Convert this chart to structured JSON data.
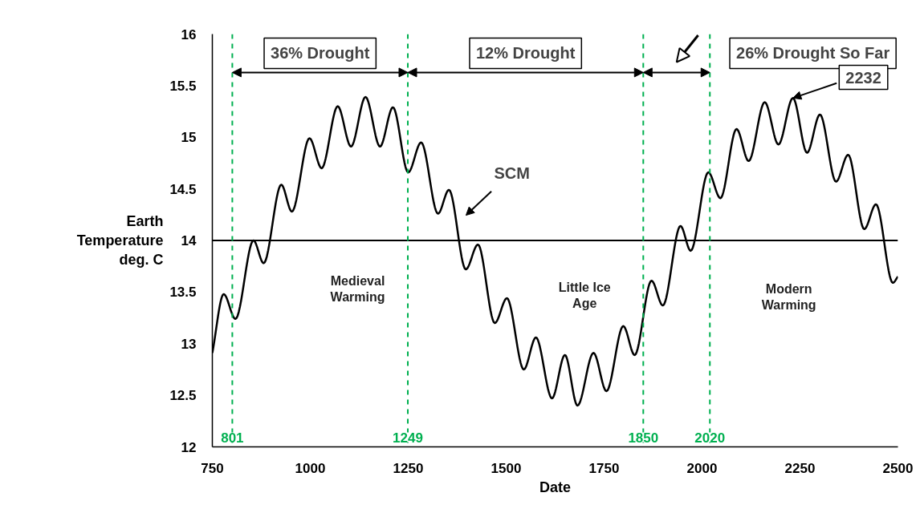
{
  "chart_data": {
    "type": "line",
    "xlabel": "Date",
    "ylabel": "Earth\nTemperature\ndeg. C",
    "xlim": [
      750,
      2500
    ],
    "ylim": [
      12,
      16
    ],
    "xticks": [
      750,
      1000,
      1250,
      1500,
      1750,
      2000,
      2250,
      2500
    ],
    "yticks": [
      12,
      12.5,
      13,
      13.5,
      14,
      14.5,
      15,
      15.5,
      16
    ],
    "grid": false,
    "marker": "none",
    "line_style": "solid",
    "series": [
      {
        "color": "#000000",
        "x": [
          750,
          779,
          809,
          855,
          881,
          926,
          953,
          998,
          1029,
          1070,
          1104,
          1141,
          1178,
          1211,
          1250,
          1283,
          1326,
          1354,
          1397,
          1428,
          1471,
          1502,
          1545,
          1576,
          1617,
          1650,
          1682,
          1723,
          1756,
          1799,
          1828,
          1871,
          1900,
          1945,
          1971,
          2016,
          2047,
          2088,
          2119,
          2160,
          2195,
          2232,
          2268,
          2301,
          2342,
          2373,
          2414,
          2444,
          2487,
          2500
        ],
        "values": [
          12.91,
          13.48,
          13.24,
          14.0,
          13.78,
          14.54,
          14.28,
          14.99,
          14.7,
          15.3,
          14.91,
          15.39,
          14.91,
          15.29,
          14.66,
          14.95,
          14.26,
          14.49,
          13.72,
          13.96,
          13.2,
          13.44,
          12.75,
          13.06,
          12.47,
          12.89,
          12.4,
          12.91,
          12.54,
          13.17,
          12.89,
          13.61,
          13.37,
          14.14,
          13.9,
          14.66,
          14.41,
          15.08,
          14.77,
          15.34,
          14.93,
          15.38,
          14.85,
          15.22,
          14.57,
          14.83,
          14.11,
          14.35,
          13.59,
          13.65
        ]
      }
    ],
    "ref_lines": [
      {
        "axis": "y",
        "value": 14,
        "color": "#000000",
        "line_style": "solid"
      },
      {
        "axis": "x",
        "value": 801,
        "label": "801",
        "color": "#00b050",
        "line_style": "dashed"
      },
      {
        "axis": "x",
        "value": 1249,
        "label": "1249",
        "color": "#00b050",
        "line_style": "dashed"
      },
      {
        "axis": "x",
        "value": 1850,
        "label": "1850",
        "color": "#00b050",
        "line_style": "dashed"
      },
      {
        "axis": "x",
        "value": 2020,
        "label": "2020",
        "color": "#00b050",
        "line_style": "dashed"
      }
    ],
    "annotations": [
      "36% Drought",
      "12% Drought",
      "26% Drought So Far",
      "SCM",
      {
        "text": "2232",
        "x": 2232,
        "y": 15.38
      },
      "Medieval\nWarming",
      "Little Ice\nAge",
      "Modern\nWarming"
    ]
  }
}
